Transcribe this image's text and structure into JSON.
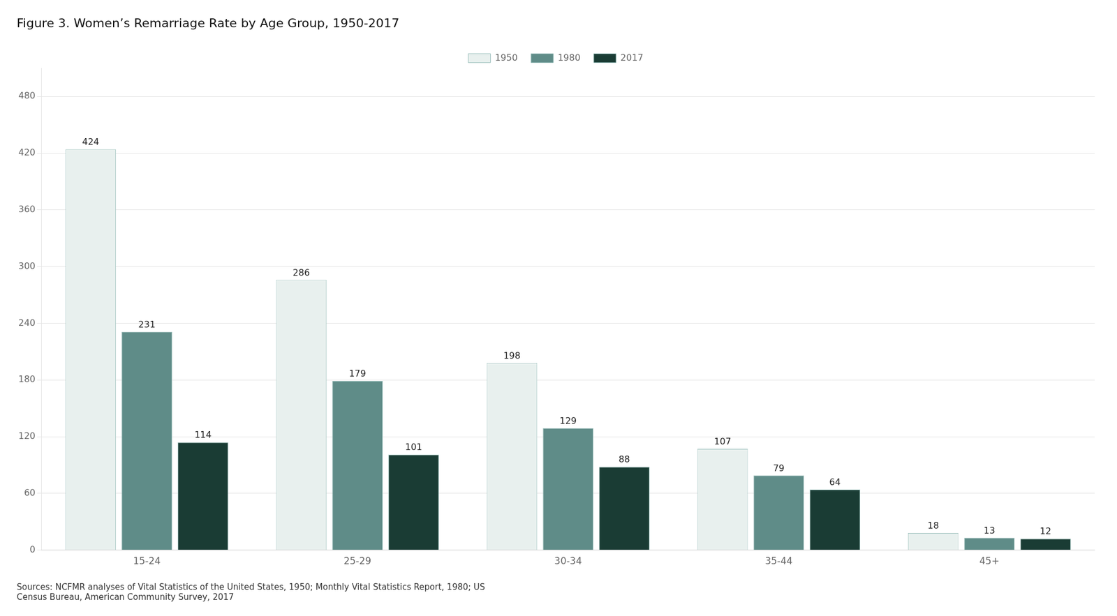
{
  "chart_data": {
    "type": "bar",
    "title": "Figure 3. Women’s Remarriage Rate by Age Group, 1950-2017",
    "categories": [
      "15-24",
      "25-29",
      "30-34",
      "35-44",
      "45+"
    ],
    "series": [
      {
        "name": "1950",
        "color": "#e8f0ee",
        "values": [
          424,
          286,
          198,
          107,
          18
        ]
      },
      {
        "name": "1980",
        "color": "#5f8c88",
        "values": [
          231,
          179,
          129,
          79,
          13
        ]
      },
      {
        "name": "2017",
        "color": "#1a3c34",
        "values": [
          114,
          101,
          88,
          64,
          12
        ]
      }
    ],
    "ylim": [
      0,
      510
    ],
    "yticks": [
      0,
      60,
      120,
      180,
      240,
      300,
      360,
      420,
      480
    ],
    "grid": true,
    "legend": "top",
    "data_labels": true,
    "annotations": [
      "Sources: NCFMR analyses of Vital Statistics of the United States, 1950; Monthly Vital Statistics Report, 1980; US\nCensus Bureau, American Community Survey, 2017"
    ]
  }
}
